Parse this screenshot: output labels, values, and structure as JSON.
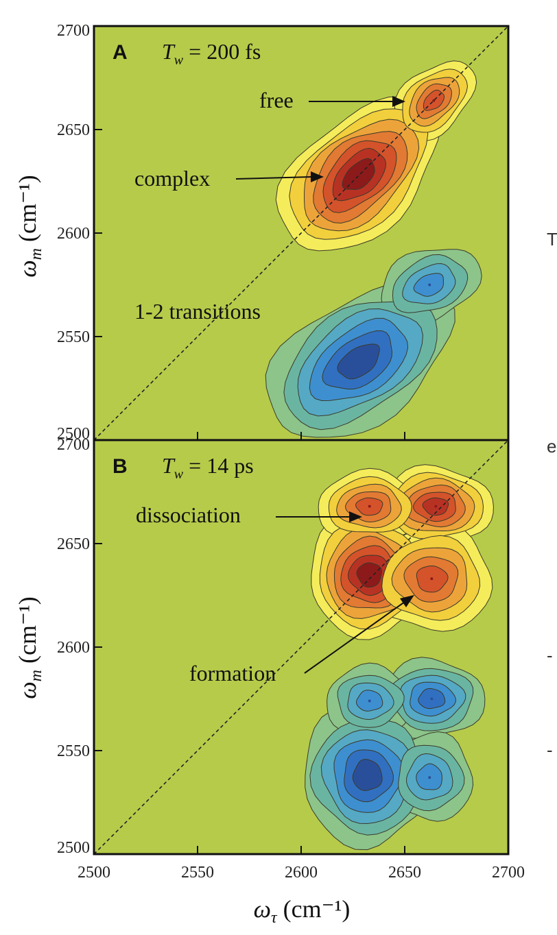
{
  "chart_data": [
    {
      "type": "contour",
      "panel_label": "A",
      "waiting_time": {
        "symbol": "T",
        "subscript": "w",
        "text": " = 200 fs"
      },
      "xlim": [
        2500,
        2700
      ],
      "ylim": [
        2500,
        2700
      ],
      "x_ticks": [
        "2500",
        "2550",
        "2600",
        "2650",
        "2700"
      ],
      "y_ticks": [
        "2500",
        "2550",
        "2600",
        "2650",
        "2700"
      ],
      "ylabel": {
        "symbol": "ω",
        "subscript": "m",
        "unit": " (cm⁻¹)"
      },
      "diagonal": true,
      "peaks": [
        {
          "x": 2628,
          "y": 2628,
          "sign": "positive",
          "label": "complex"
        },
        {
          "x": 2664,
          "y": 2664,
          "sign": "positive",
          "label": "free"
        },
        {
          "x": 2628,
          "y": 2538,
          "sign": "negative"
        },
        {
          "x": 2662,
          "y": 2575,
          "sign": "negative"
        }
      ],
      "annotations": [
        {
          "text": "free",
          "target": {
            "x": 2652,
            "y": 2665
          }
        },
        {
          "text": "complex",
          "target": {
            "x": 2610,
            "y": 2630
          }
        },
        {
          "text": "1-2 transitions"
        }
      ]
    },
    {
      "type": "contour",
      "panel_label": "B",
      "waiting_time": {
        "symbol": "T",
        "subscript": "w",
        "text": " = 14 ps"
      },
      "xlim": [
        2500,
        2700
      ],
      "ylim": [
        2500,
        2700
      ],
      "x_ticks": [
        "2500",
        "2550",
        "2600",
        "2650",
        "2700"
      ],
      "y_ticks": [
        "2500",
        "2550",
        "2600",
        "2650",
        "2700"
      ],
      "xlabel": {
        "symbol": "ω",
        "subscript": "τ",
        "unit": " (cm⁻¹)"
      },
      "ylabel": {
        "symbol": "ω",
        "subscript": "m",
        "unit": " (cm⁻¹)"
      },
      "diagonal": true,
      "peaks": [
        {
          "x": 2633,
          "y": 2635,
          "sign": "positive"
        },
        {
          "x": 2665,
          "y": 2668,
          "sign": "positive"
        },
        {
          "x": 2633,
          "y": 2668,
          "sign": "positive",
          "label": "dissociation"
        },
        {
          "x": 2663,
          "y": 2633,
          "sign": "positive",
          "label": "formation"
        },
        {
          "x": 2632,
          "y": 2538,
          "sign": "negative"
        },
        {
          "x": 2663,
          "y": 2575,
          "sign": "negative"
        },
        {
          "x": 2633,
          "y": 2574,
          "sign": "negative"
        },
        {
          "x": 2662,
          "y": 2537,
          "sign": "negative"
        }
      ],
      "annotations": [
        {
          "text": "dissociation",
          "target": {
            "x": 2627,
            "y": 2670
          }
        },
        {
          "text": "formation",
          "target": {
            "x": 2651,
            "y": 2625
          }
        }
      ]
    }
  ],
  "colors": {
    "background": "#b6cb4a",
    "positive": [
      "#f4ec5a",
      "#f2cf3c",
      "#eca43a",
      "#e27a33",
      "#d4532b",
      "#b83224",
      "#8c1a1a"
    ],
    "negative": [
      "#8cc48a",
      "#6ab5a2",
      "#55a9c4",
      "#3e8fd0",
      "#3170c0",
      "#2a4f9a"
    ],
    "contour_line": "#3a3a2a"
  },
  "edge_glyphs": [
    "T",
    "e",
    "-",
    "-"
  ]
}
